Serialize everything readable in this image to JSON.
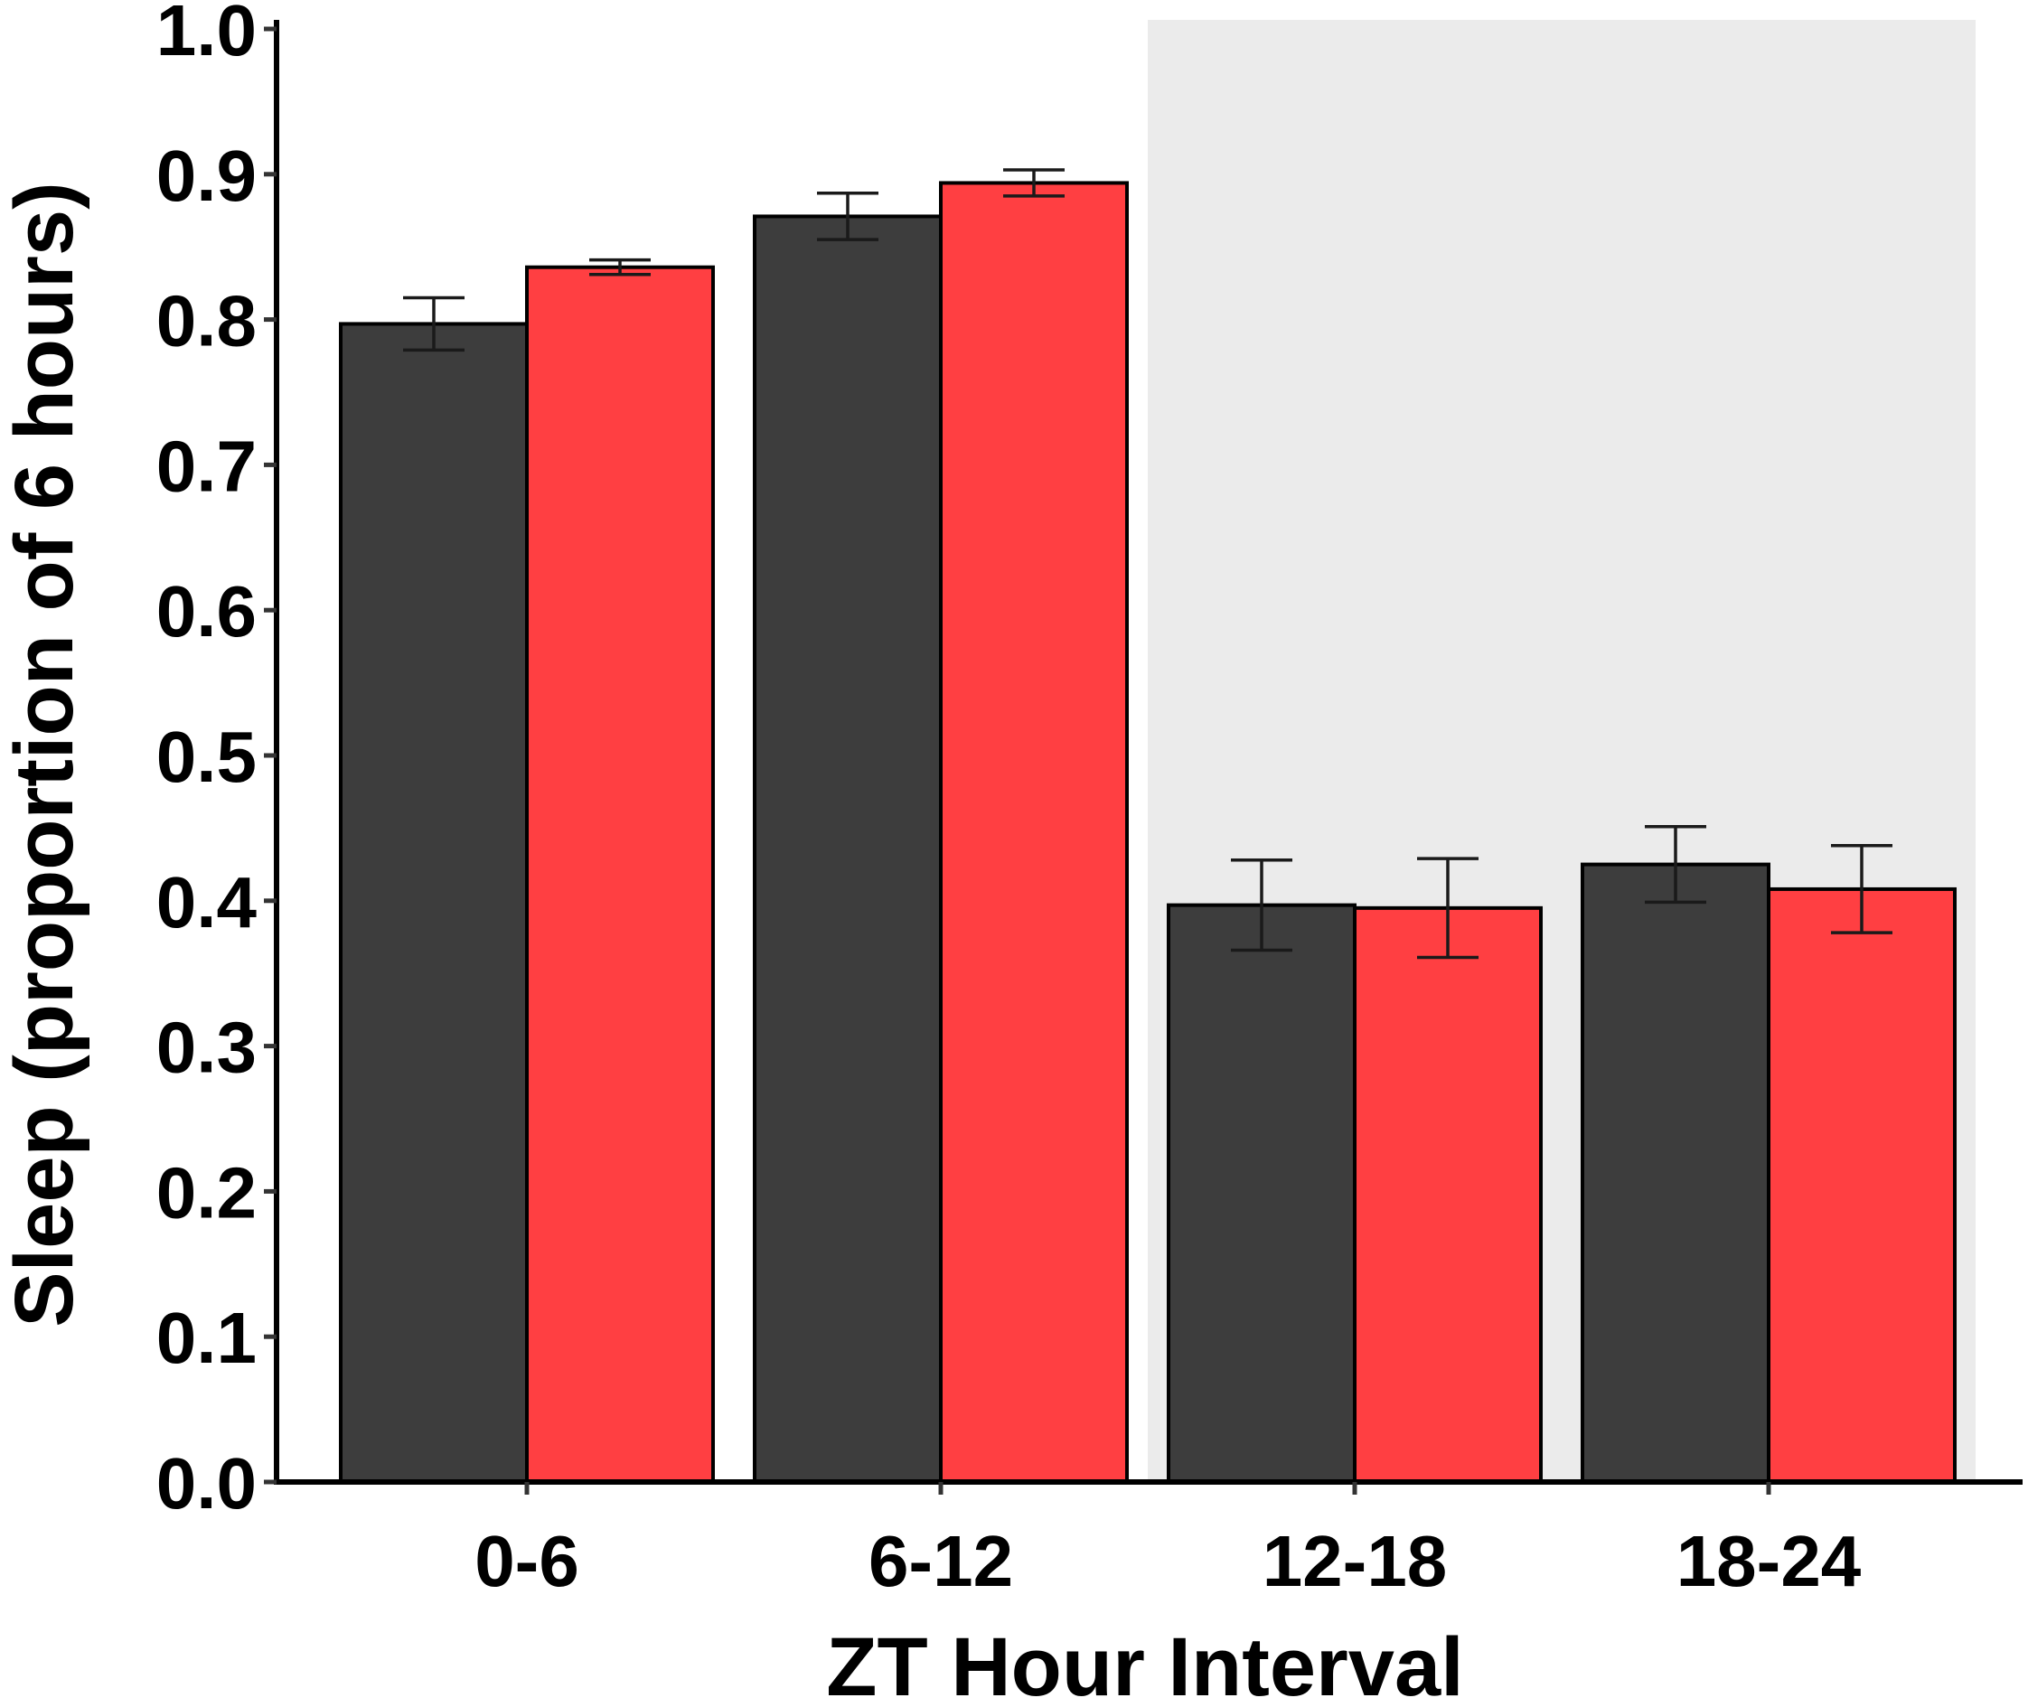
{
  "chart_data": {
    "type": "bar",
    "title": "",
    "xlabel": "ZT Hour Interval",
    "ylabel": "Sleep (proportion of 6 hours)",
    "categories": [
      "0-6",
      "6-12",
      "12-18",
      "18-24"
    ],
    "ylim": [
      0,
      1.0
    ],
    "yticks": [
      "0.0",
      "0.1",
      "0.2",
      "0.3",
      "0.4",
      "0.5",
      "0.6",
      "0.7",
      "0.8",
      "0.9",
      "1.0"
    ],
    "grid": false,
    "legend": "none",
    "shaded_region": {
      "from_category": "12-18",
      "to_category": "18-24",
      "color": "#ebebeb"
    },
    "series": [
      {
        "color": "#3d3d3d",
        "values": [
          0.797,
          0.871,
          0.397,
          0.425
        ],
        "errors": [
          0.018,
          0.016,
          0.031,
          0.026
        ]
      },
      {
        "color": "#ff3f42",
        "values": [
          0.836,
          0.894,
          0.395,
          0.408
        ],
        "errors": [
          0.005,
          0.009,
          0.034,
          0.03
        ]
      }
    ]
  }
}
